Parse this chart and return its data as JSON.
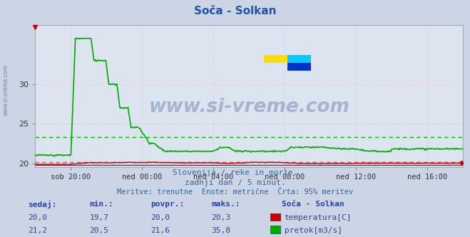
{
  "title": "Soča - Solkan",
  "background_color": "#ccd5e5",
  "plot_bg_color": "#dce4f0",
  "grid_color_h": "#ffbbbb",
  "grid_color_v": "#ffbbbb",
  "x_labels": [
    "sob 20:00",
    "ned 00:00",
    "ned 04:00",
    "ned 08:00",
    "ned 12:00",
    "ned 16:00"
  ],
  "x_ticks_pos": [
    48,
    144,
    240,
    336,
    432,
    528
  ],
  "n_points": 577,
  "ylim_min": 19.5,
  "ylim_max": 37.5,
  "ytick_vals": [
    20,
    25,
    30
  ],
  "temp_color": "#cc0000",
  "flow_color": "#00aa00",
  "temp_avg_color": "#ff4444",
  "flow_avg_color": "#00bb00",
  "purple_color": "#6600aa",
  "watermark_color": "#1a3a7a",
  "title_color": "#2255aa",
  "subtitle_color": "#336699",
  "table_header_color": "#2244aa",
  "table_value_color": "#334488",
  "subtitle1": "Slovenija / reke in morje.",
  "subtitle2": "zadnji dan / 5 minut.",
  "subtitle3": "Meritve: trenutne  Enote: metrične  Črta: 95% meritev",
  "sedaj_label": "sedaj:",
  "min_label": "min.:",
  "povpr_label": "povpr.:",
  "maks_label": "maks.:",
  "station_label": "Soča - Solkan",
  "temp_label": "temperatura[C]",
  "flow_label": "pretok[m3/s]",
  "temp_sedaj": "20,0",
  "temp_min": "19,7",
  "temp_povpr": "20,0",
  "temp_maks": "20,3",
  "flow_sedaj": "21,2",
  "flow_min": "20,5",
  "flow_povpr": "21,6",
  "flow_maks": "35,8",
  "temp_avg_value": 20.15,
  "flow_avg_value": 23.3
}
